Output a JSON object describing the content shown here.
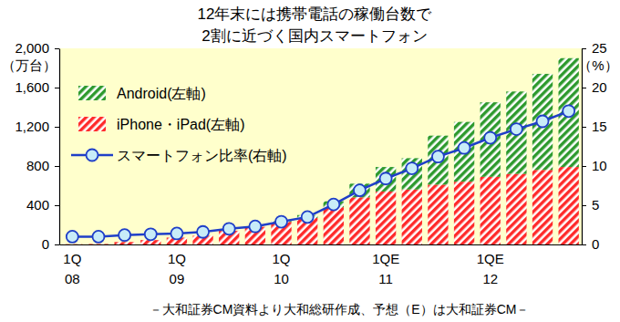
{
  "chart_data": {
    "type": "bar",
    "title": "12年末には携帯電話の稼働台数で\n2割に近づく国内スマートフォン",
    "y_label": "（万台）",
    "y2_label": "（%）",
    "annotations": [
      "－大和証券CM資料より大和総研作成、予想（E）は大和証券CM－"
    ],
    "categories": [
      "1Q\n08",
      null,
      null,
      null,
      "1Q\n09",
      null,
      null,
      null,
      "1Q\n10",
      null,
      null,
      null,
      "1QE\n11",
      null,
      null,
      null,
      "1QE\n12",
      null,
      null,
      null
    ],
    "stacked": true,
    "legend": "upper left",
    "ylim": [
      0,
      2000
    ],
    "yticks": [
      0,
      400,
      800,
      {
        "value": 1200,
        "label": "1,200"
      },
      {
        "value": 1600,
        "label": "1,600"
      },
      {
        "value": 2000,
        "label": "2,000"
      }
    ],
    "y2lim": [
      0,
      25
    ],
    "y2ticks": [
      0,
      5,
      10,
      15,
      20,
      25
    ],
    "series": [
      {
        "name": "iPhone・iPad(左軸)",
        "type": "bar",
        "color": "#ff2a2a",
        "values": [
          3,
          5,
          25,
          45,
          70,
          90,
          140,
          180,
          230,
          270,
          380,
          480,
          540,
          560,
          610,
          640,
          690,
          720,
          760,
          790
        ]
      },
      {
        "name": "Android(左軸)",
        "type": "bar",
        "color": "#2e9a2e",
        "values": [
          0,
          0,
          0,
          0,
          0,
          0,
          0,
          0,
          10,
          30,
          60,
          140,
          250,
          320,
          500,
          610,
          760,
          840,
          980,
          1110
        ]
      },
      {
        "name": "スマートフォン比率(右軸)",
        "type": "line",
        "axis": "y2",
        "color": "#1f3fc8",
        "marker": "circle",
        "values": [
          1.0,
          1.0,
          1.2,
          1.3,
          1.4,
          1.6,
          2.0,
          2.3,
          2.9,
          3.5,
          5.1,
          6.9,
          8.4,
          9.7,
          11.2,
          12.3,
          13.6,
          14.7,
          15.7,
          17.0
        ]
      }
    ]
  }
}
